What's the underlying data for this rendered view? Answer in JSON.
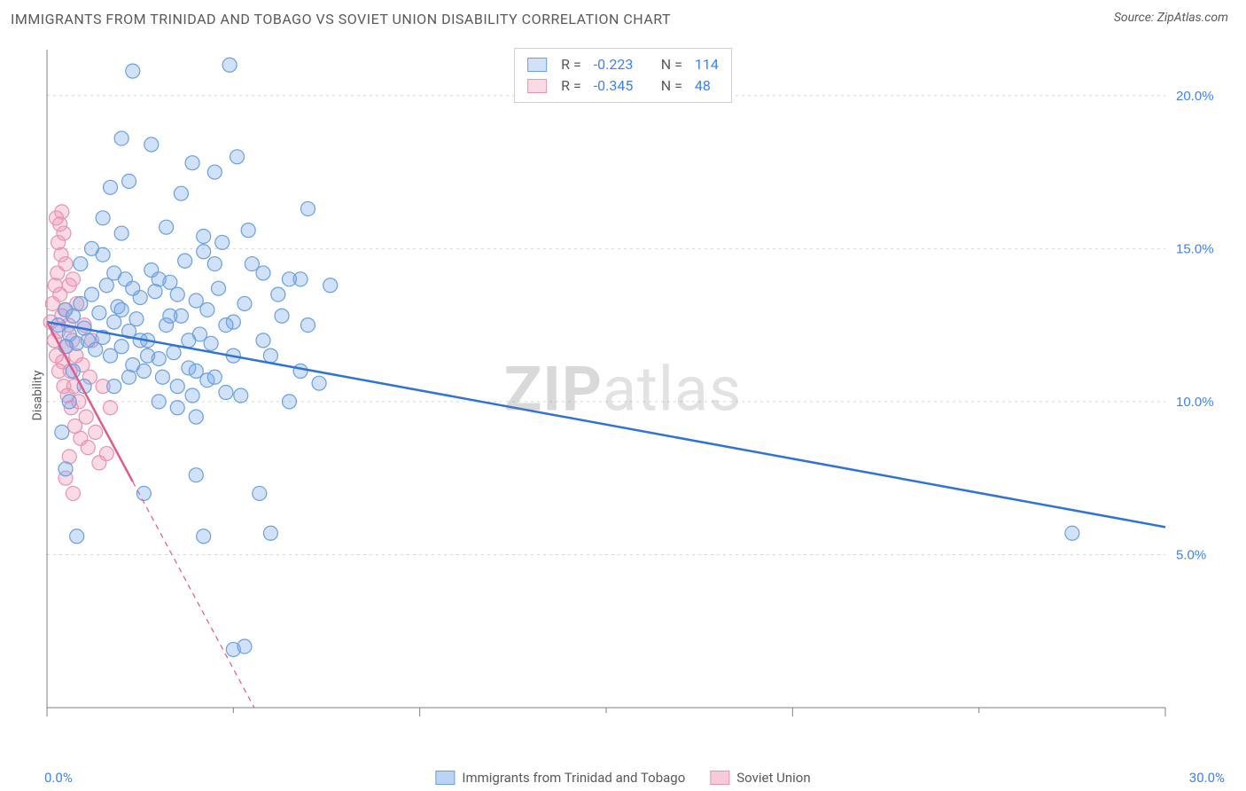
{
  "header": {
    "title": "IMMIGRANTS FROM TRINIDAD AND TOBAGO VS SOVIET UNION DISABILITY CORRELATION CHART",
    "source": "Source: ZipAtlas.com"
  },
  "watermark": {
    "prefix": "ZIP",
    "suffix": "atlas"
  },
  "chart": {
    "type": "scatter",
    "ylabel": "Disability",
    "background_color": "#ffffff",
    "grid_color": "#d6d6d6",
    "axis_color": "#808080",
    "xlim": [
      0,
      30
    ],
    "ylim": [
      0,
      21.5
    ],
    "x_ticks_major": [
      0,
      10,
      20,
      30
    ],
    "x_ticks_minor": [
      5,
      15,
      25
    ],
    "y_ticks": [
      5,
      10,
      15,
      20
    ],
    "y_tick_labels": [
      "5.0%",
      "10.0%",
      "15.0%",
      "20.0%"
    ],
    "x_tick_labels": {
      "min": "0.0%",
      "max": "30.0%"
    },
    "marker_radius": 8,
    "marker_stroke_width": 1.2,
    "trend_width": 2.5,
    "series": [
      {
        "name": "Immigrants from Trinidad and Tobago",
        "fill": "rgba(120,170,235,0.35)",
        "stroke": "#6aa0e0",
        "line_color": "#2f72d8",
        "line_dash": "none",
        "r": -0.223,
        "n": 114,
        "trend": {
          "x1": 0,
          "y1": 12.6,
          "x2": 30,
          "y2": 5.9
        },
        "points": [
          [
            0.3,
            12.5
          ],
          [
            0.5,
            13.0
          ],
          [
            0.6,
            12.2
          ],
          [
            0.7,
            12.8
          ],
          [
            0.8,
            11.9
          ],
          [
            0.9,
            13.2
          ],
          [
            1.0,
            12.4
          ],
          [
            1.1,
            12.0
          ],
          [
            1.2,
            13.5
          ],
          [
            1.3,
            11.7
          ],
          [
            1.4,
            12.9
          ],
          [
            1.5,
            12.1
          ],
          [
            1.6,
            13.8
          ],
          [
            1.7,
            11.5
          ],
          [
            1.8,
            12.6
          ],
          [
            1.9,
            13.1
          ],
          [
            2.0,
            11.8
          ],
          [
            2.1,
            14.0
          ],
          [
            2.2,
            12.3
          ],
          [
            2.3,
            11.2
          ],
          [
            2.4,
            12.7
          ],
          [
            2.5,
            13.4
          ],
          [
            2.6,
            11.0
          ],
          [
            2.7,
            12.0
          ],
          [
            2.8,
            14.3
          ],
          [
            2.9,
            13.6
          ],
          [
            3.0,
            11.4
          ],
          [
            3.1,
            10.8
          ],
          [
            3.2,
            12.5
          ],
          [
            3.3,
            13.9
          ],
          [
            3.4,
            11.6
          ],
          [
            3.5,
            10.5
          ],
          [
            3.6,
            12.8
          ],
          [
            3.7,
            14.6
          ],
          [
            3.8,
            11.1
          ],
          [
            3.9,
            10.2
          ],
          [
            4.0,
            13.3
          ],
          [
            4.1,
            12.2
          ],
          [
            4.2,
            14.9
          ],
          [
            4.3,
            10.7
          ],
          [
            4.4,
            11.9
          ],
          [
            4.5,
            17.5
          ],
          [
            4.6,
            13.7
          ],
          [
            4.7,
            15.2
          ],
          [
            4.8,
            10.3
          ],
          [
            4.9,
            21.0
          ],
          [
            5.0,
            12.6
          ],
          [
            5.1,
            18.0
          ],
          [
            2.2,
            17.2
          ],
          [
            2.8,
            18.4
          ],
          [
            2.0,
            18.6
          ],
          [
            3.2,
            15.7
          ],
          [
            3.6,
            16.8
          ],
          [
            4.2,
            15.4
          ],
          [
            5.4,
            15.6
          ],
          [
            5.8,
            14.2
          ],
          [
            6.2,
            13.5
          ],
          [
            6.5,
            10.0
          ],
          [
            6.8,
            14.0
          ],
          [
            7.0,
            16.3
          ],
          [
            7.3,
            10.6
          ],
          [
            7.6,
            13.8
          ],
          [
            0.8,
            5.6
          ],
          [
            4.2,
            5.6
          ],
          [
            5.0,
            1.9
          ],
          [
            5.3,
            2.0
          ],
          [
            4.0,
            7.6
          ],
          [
            2.6,
            7.0
          ],
          [
            0.5,
            7.8
          ],
          [
            0.4,
            9.0
          ],
          [
            0.6,
            10.0
          ],
          [
            1.0,
            10.5
          ],
          [
            1.5,
            14.8
          ],
          [
            1.8,
            14.2
          ],
          [
            2.0,
            13.0
          ],
          [
            2.3,
            13.7
          ],
          [
            2.5,
            12.0
          ],
          [
            2.7,
            11.5
          ],
          [
            3.0,
            14.0
          ],
          [
            3.3,
            12.8
          ],
          [
            3.5,
            13.5
          ],
          [
            3.8,
            12.0
          ],
          [
            4.0,
            11.0
          ],
          [
            4.3,
            13.0
          ],
          [
            4.5,
            14.5
          ],
          [
            4.8,
            12.5
          ],
          [
            5.0,
            11.5
          ],
          [
            5.3,
            13.2
          ],
          [
            5.5,
            14.5
          ],
          [
            5.8,
            12.0
          ],
          [
            6.0,
            11.5
          ],
          [
            6.3,
            12.8
          ],
          [
            6.5,
            14.0
          ],
          [
            6.8,
            11.0
          ],
          [
            7.0,
            12.5
          ],
          [
            1.2,
            15.0
          ],
          [
            1.5,
            16.0
          ],
          [
            2.0,
            15.5
          ],
          [
            0.9,
            14.5
          ],
          [
            0.7,
            11.0
          ],
          [
            0.5,
            11.8
          ],
          [
            1.8,
            10.5
          ],
          [
            2.2,
            10.8
          ],
          [
            3.0,
            10.0
          ],
          [
            3.5,
            9.8
          ],
          [
            4.0,
            9.5
          ],
          [
            4.5,
            10.8
          ],
          [
            5.2,
            10.2
          ],
          [
            6.0,
            5.7
          ],
          [
            5.7,
            7.0
          ],
          [
            27.5,
            5.7
          ],
          [
            2.3,
            20.8
          ],
          [
            3.9,
            17.8
          ],
          [
            1.7,
            17.0
          ]
        ]
      },
      {
        "name": "Soviet Union",
        "fill": "rgba(240,150,180,0.35)",
        "stroke": "#e893b0",
        "line_color": "#e05a8a",
        "line_dash": "6 5",
        "line_solid_to_x": 2.3,
        "r": -0.345,
        "n": 48,
        "trend": {
          "x1": 0,
          "y1": 12.6,
          "x2": 6.0,
          "y2": -1.0
        },
        "points": [
          [
            0.1,
            12.6
          ],
          [
            0.15,
            13.2
          ],
          [
            0.2,
            12.0
          ],
          [
            0.22,
            13.8
          ],
          [
            0.25,
            11.5
          ],
          [
            0.28,
            14.2
          ],
          [
            0.3,
            12.3
          ],
          [
            0.32,
            11.0
          ],
          [
            0.35,
            13.5
          ],
          [
            0.38,
            14.8
          ],
          [
            0.4,
            12.8
          ],
          [
            0.42,
            11.3
          ],
          [
            0.45,
            10.5
          ],
          [
            0.48,
            13.0
          ],
          [
            0.5,
            14.5
          ],
          [
            0.52,
            11.8
          ],
          [
            0.55,
            10.2
          ],
          [
            0.58,
            12.5
          ],
          [
            0.6,
            13.8
          ],
          [
            0.62,
            11.0
          ],
          [
            0.65,
            9.8
          ],
          [
            0.68,
            12.0
          ],
          [
            0.7,
            14.0
          ],
          [
            0.72,
            10.5
          ],
          [
            0.75,
            9.2
          ],
          [
            0.78,
            11.5
          ],
          [
            0.8,
            13.2
          ],
          [
            0.85,
            10.0
          ],
          [
            0.9,
            8.8
          ],
          [
            0.95,
            11.2
          ],
          [
            1.0,
            12.5
          ],
          [
            1.05,
            9.5
          ],
          [
            1.1,
            8.5
          ],
          [
            1.15,
            10.8
          ],
          [
            1.2,
            12.0
          ],
          [
            1.3,
            9.0
          ],
          [
            1.4,
            8.0
          ],
          [
            1.5,
            10.5
          ],
          [
            1.6,
            8.3
          ],
          [
            1.7,
            9.8
          ],
          [
            0.5,
            7.5
          ],
          [
            0.6,
            8.2
          ],
          [
            0.7,
            7.0
          ],
          [
            0.3,
            15.2
          ],
          [
            0.35,
            15.8
          ],
          [
            0.4,
            16.2
          ],
          [
            0.45,
            15.5
          ],
          [
            0.25,
            16.0
          ]
        ]
      }
    ]
  },
  "legend_bottom": [
    {
      "label": "Immigrants from Trinidad and Tobago",
      "fill": "rgba(120,170,235,0.5)",
      "stroke": "#6aa0e0"
    },
    {
      "label": "Soviet Union",
      "fill": "rgba(240,150,180,0.5)",
      "stroke": "#e893b0"
    }
  ]
}
